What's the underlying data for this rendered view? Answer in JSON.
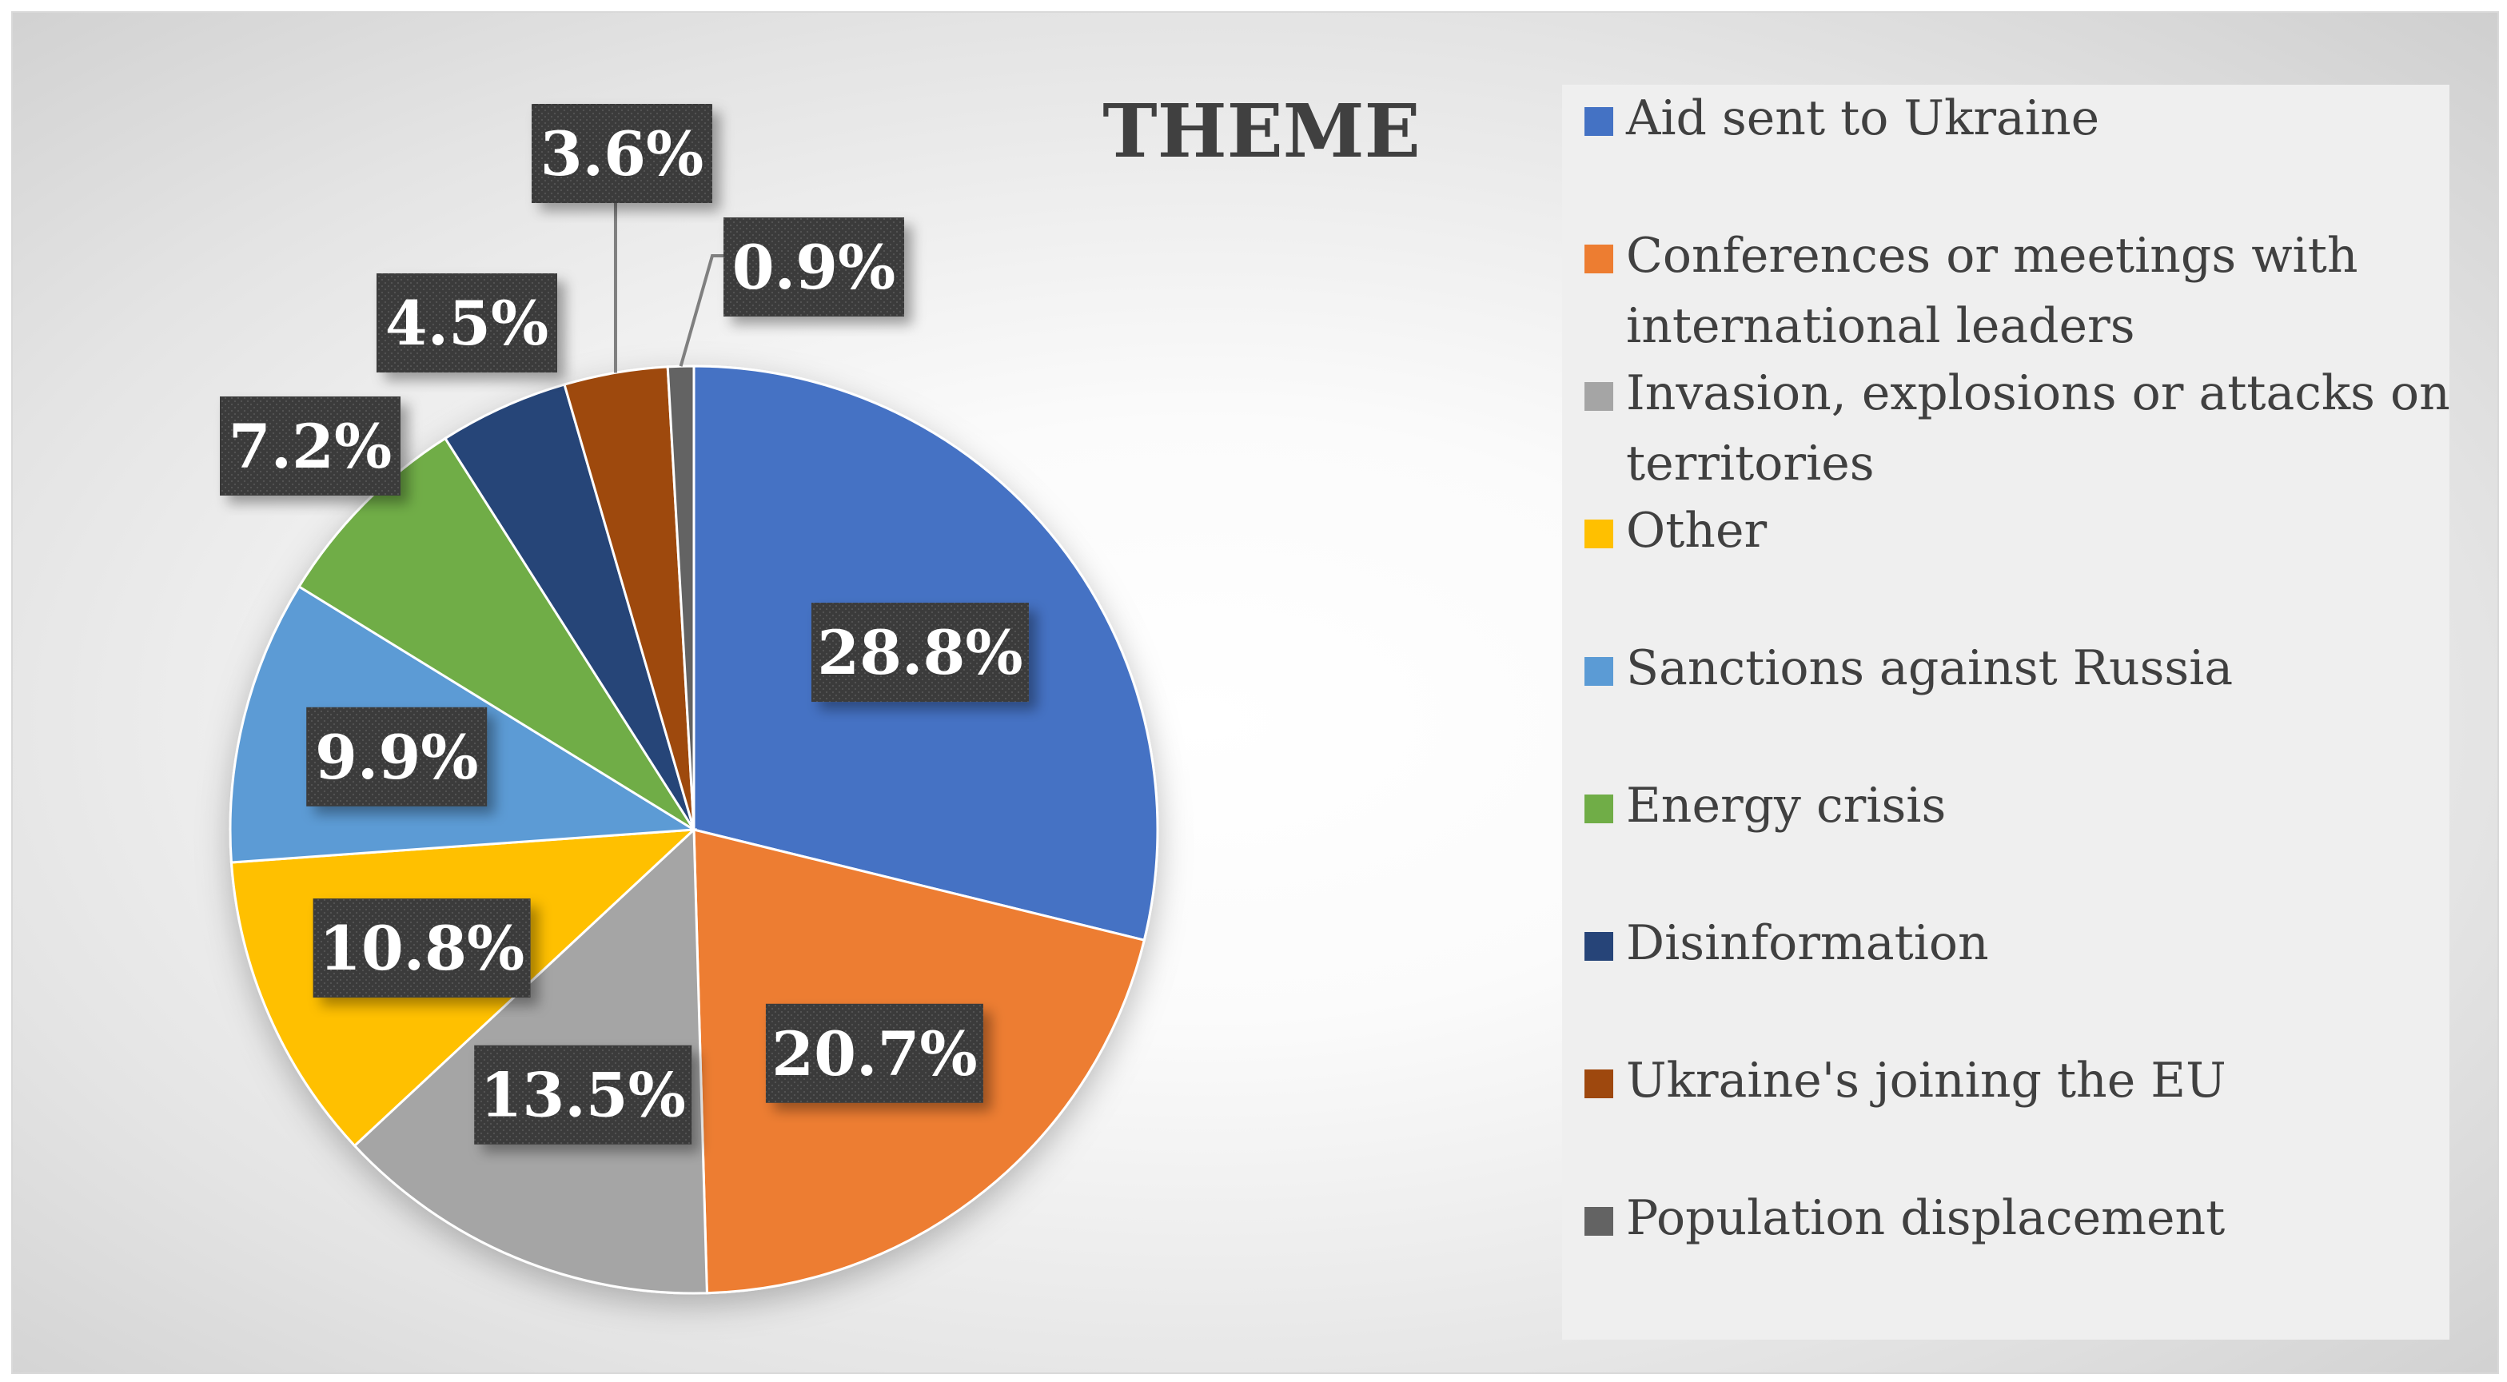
{
  "chart_data": {
    "type": "pie",
    "title": "THEME",
    "legend_position": "right",
    "slices": [
      {
        "name": "Aid sent to Ukraine",
        "value": 28.8,
        "label": "28.8%",
        "color": "#4472C4"
      },
      {
        "name": "Conferences or meetings with international leaders",
        "legend_lines": [
          "Conferences or meetings with",
          "international leaders"
        ],
        "value": 20.7,
        "label": "20.7%",
        "color": "#ED7D31"
      },
      {
        "name": "Invasion, explosions or attacks on territories",
        "legend_lines": [
          "Invasion, explosions or attacks on",
          "territories"
        ],
        "value": 13.5,
        "label": "13.5%",
        "color": "#A5A5A5"
      },
      {
        "name": "Other",
        "value": 10.8,
        "label": "10.8%",
        "color": "#FFC000"
      },
      {
        "name": "Sanctions against Russia",
        "value": 9.9,
        "label": "9.9%",
        "color": "#5B9BD5"
      },
      {
        "name": "Energy crisis",
        "value": 7.2,
        "label": "7.2%",
        "color": "#70AD47"
      },
      {
        "name": "Disinformation",
        "value": 4.5,
        "label": "4.5%",
        "color": "#264478"
      },
      {
        "name": "Ukraine's joining the EU",
        "value": 3.6,
        "label": "3.6%",
        "color": "#9E480E"
      },
      {
        "name": "Population displacement",
        "value": 0.9,
        "label": "0.9%",
        "color": "#636363"
      }
    ]
  }
}
